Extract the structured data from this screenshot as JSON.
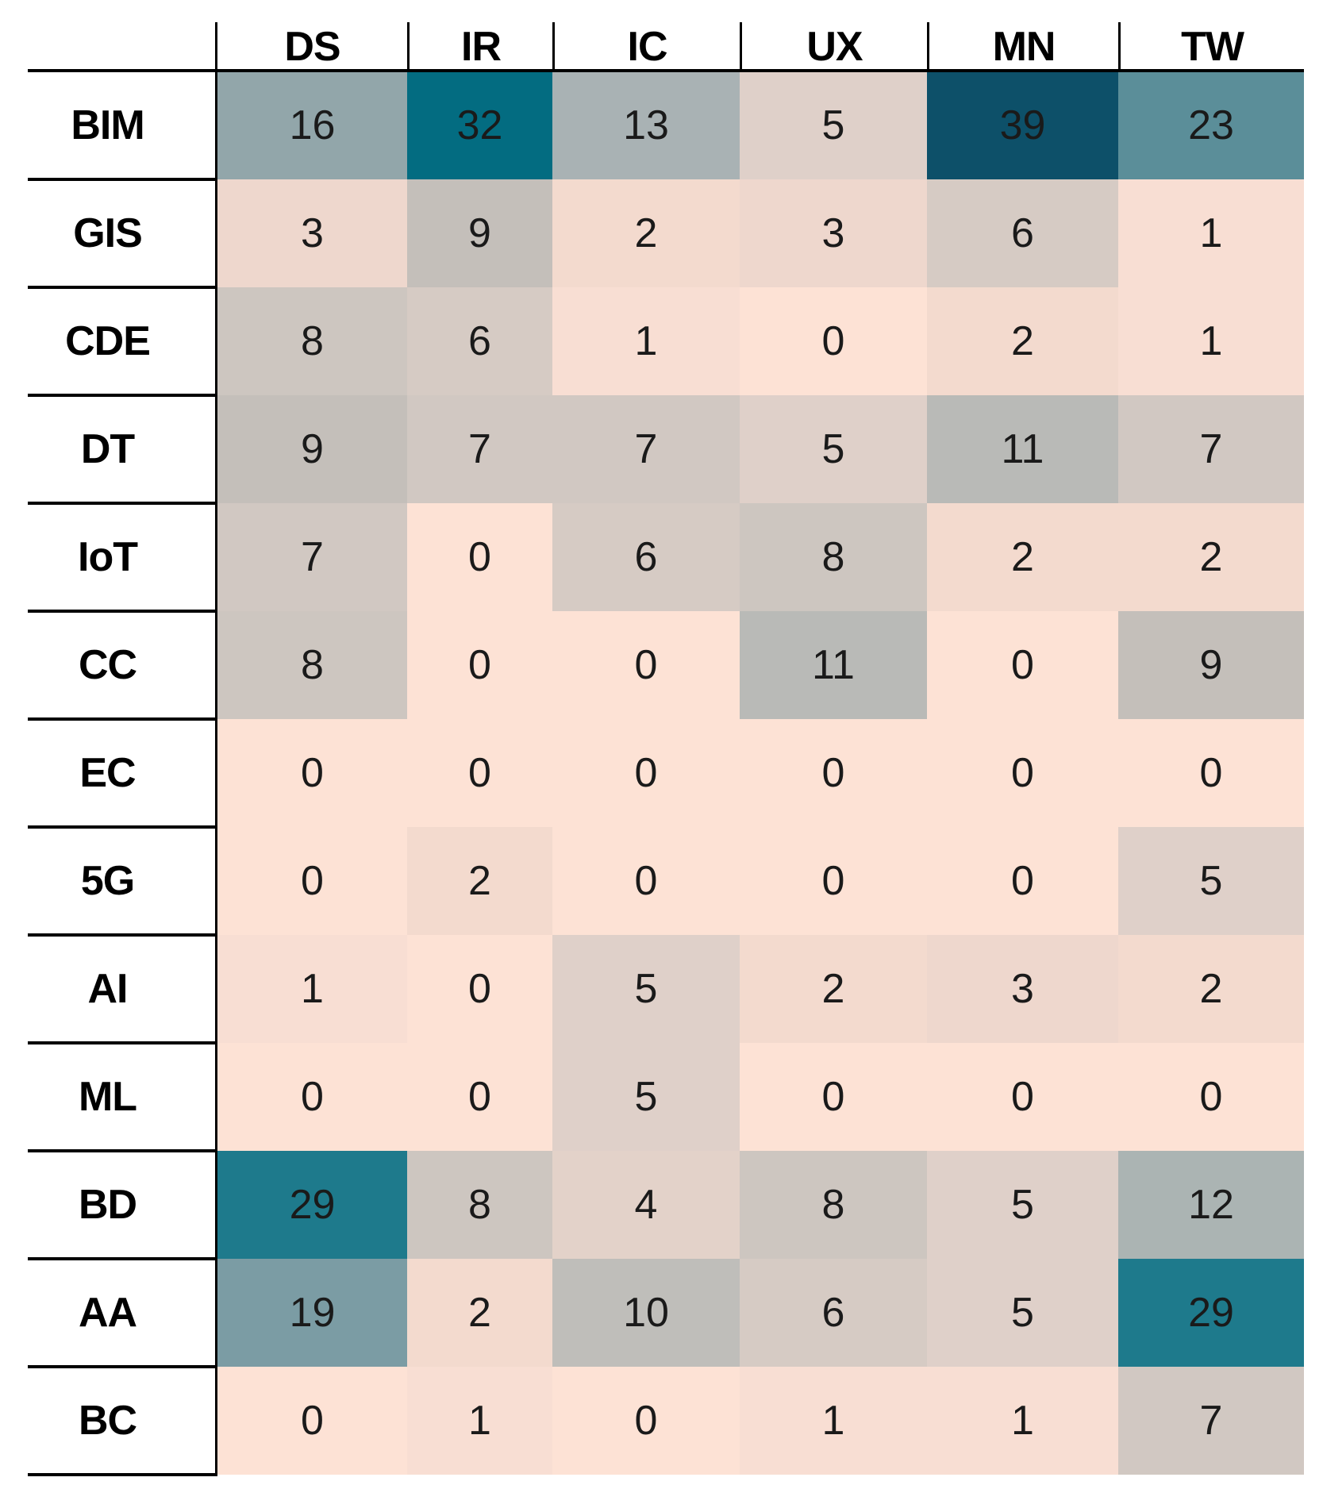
{
  "chart_data": {
    "type": "heatmap",
    "title": "",
    "columns": [
      "DS",
      "IR",
      "IC",
      "UX",
      "MN",
      "TW"
    ],
    "rows": [
      "BIM",
      "GIS",
      "CDE",
      "DT",
      "IoT",
      "CC",
      "EC",
      "5G",
      "AI",
      "ML",
      "BD",
      "AA",
      "BC"
    ],
    "values": [
      [
        16,
        32,
        13,
        5,
        39,
        23
      ],
      [
        3,
        9,
        2,
        3,
        6,
        1
      ],
      [
        8,
        6,
        1,
        0,
        2,
        1
      ],
      [
        9,
        7,
        7,
        5,
        11,
        7
      ],
      [
        7,
        0,
        6,
        8,
        2,
        2
      ],
      [
        8,
        0,
        0,
        11,
        0,
        9
      ],
      [
        0,
        0,
        0,
        0,
        0,
        0
      ],
      [
        0,
        2,
        0,
        0,
        0,
        5
      ],
      [
        1,
        0,
        5,
        2,
        3,
        2
      ],
      [
        0,
        0,
        5,
        0,
        0,
        0
      ],
      [
        29,
        8,
        4,
        8,
        5,
        12
      ],
      [
        19,
        2,
        10,
        6,
        5,
        29
      ],
      [
        0,
        1,
        0,
        1,
        1,
        7
      ]
    ],
    "value_range": [
      0,
      39
    ],
    "legend_position": "none",
    "grid": "label-column-separators-only",
    "colors": {
      "cell_text": "#1a1a1a",
      "line": "#000000",
      "background": "#ffffff",
      "low_end": "#fde2d5",
      "mid": "#b9bab7",
      "high_end": "#0d5069",
      "value_stops": {
        "0": "#fde2d5",
        "1": "#f8ded3",
        "2": "#f3dace",
        "3": "#eed7cd",
        "4": "#e3d2c9",
        "5": "#dfd0c9",
        "6": "#d6cbc4",
        "7": "#d1c8c2",
        "8": "#cdc6c0",
        "9": "#c4bfba",
        "10": "#bfbeba",
        "11": "#b9bab7",
        "12": "#abb4b3",
        "13": "#a9b2b4",
        "16": "#92a6aa",
        "19": "#7b9ca4",
        "23": "#5b8e99",
        "29": "#1e7a8c",
        "32": "#036c81",
        "39": "#0d5069"
      }
    }
  }
}
